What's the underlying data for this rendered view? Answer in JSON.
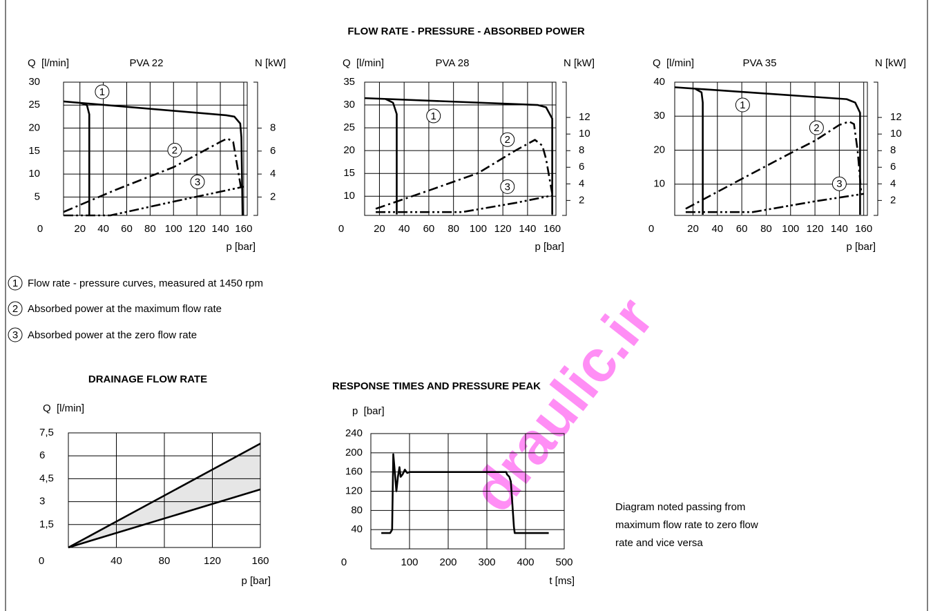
{
  "header": {
    "title": "FLOW RATE - PRESSURE - ABSORBED POWER"
  },
  "legend": [
    {
      "label": "1",
      "text": "Flow rate - pressure curves, measured at 1450 rpm"
    },
    {
      "label": "2",
      "text": "Absorbed power at the maximum flow rate"
    },
    {
      "label": "3",
      "text": "Absorbed power at the zero flow rate"
    }
  ],
  "note": [
    "Diagram noted passing from",
    "maximum flow rate to zero flow",
    "rate and vice versa"
  ],
  "watermark": "draulic.ir",
  "chart_data": [
    {
      "type": "line",
      "title": "PVA 22",
      "ylabel": "Q  [l/min]",
      "y2label": "N [kW]",
      "xlabel": "p [bar]",
      "origin_label": "0",
      "xlim": [
        6,
        163
      ],
      "xticks": [
        20,
        40,
        60,
        80,
        100,
        120,
        140,
        160
      ],
      "ylim": [
        1,
        30
      ],
      "yticks": [
        5,
        10,
        15,
        20,
        25,
        30
      ],
      "y2lim": [
        0.4,
        12
      ],
      "y2ticks": [
        2,
        4,
        6,
        8
      ],
      "grid": true,
      "color": "#000000",
      "series": [
        {
          "x": [
            6,
            145,
            152,
            157,
            158,
            159
          ],
          "values": [
            25.8,
            22.8,
            22.5,
            21,
            18,
            1
          ],
          "dash": "solid"
        },
        {
          "x": [
            20,
            26,
            28,
            28
          ],
          "values": [
            25.5,
            25,
            23,
            1
          ],
          "dash": "solid"
        },
        {
          "x": [
            6,
            50,
            100,
            140,
            146,
            151,
            153,
            158
          ],
          "values": [
            0.7,
            2.6,
            4.6,
            6.8,
            7.1,
            6.8,
            5.6,
            2.6
          ],
          "dash": "dashdot",
          "axis": "y2"
        },
        {
          "x": [
            6,
            46,
            100,
            160
          ],
          "values": [
            0.4,
            0.4,
            1.6,
            2.9
          ],
          "dash": "dashdotdot",
          "axis": "y2"
        }
      ],
      "annotations": [
        {
          "text": "1",
          "x": 39,
          "y": 27.9
        },
        {
          "text": "2",
          "x": 101,
          "y": 15.2
        },
        {
          "text": "3",
          "x": 120.5,
          "y": 8.3
        }
      ]
    },
    {
      "type": "line",
      "title": "PVA 28",
      "ylabel": "Q  [l/min]",
      "y2label": "N [kW]",
      "xlabel": "p [bar]",
      "origin_label": "0",
      "xlim": [
        8,
        163
      ],
      "xticks": [
        20,
        40,
        60,
        80,
        100,
        120,
        140,
        160
      ],
      "ylim": [
        5.8,
        35
      ],
      "yticks": [
        10,
        15,
        20,
        25,
        30,
        35
      ],
      "y2lim": [
        0.2,
        16.25
      ],
      "y2ticks": [
        2,
        4,
        6,
        8,
        10,
        12
      ],
      "grid": true,
      "color": "#000000",
      "series": [
        {
          "x": [
            8,
            148,
            155,
            160,
            160
          ],
          "values": [
            31.5,
            30,
            29.5,
            27,
            6
          ],
          "dash": "solid"
        },
        {
          "x": [
            25,
            31,
            34,
            34
          ],
          "values": [
            31.3,
            30.5,
            28,
            6
          ],
          "dash": "solid"
        },
        {
          "x": [
            17,
            60,
            100,
            130,
            146,
            152,
            155,
            160
          ],
          "values": [
            1.0,
            3.2,
            5.3,
            8.0,
            9.3,
            8.6,
            7,
            2.8
          ],
          "dash": "dashdot",
          "axis": "y2"
        },
        {
          "x": [
            17,
            87,
            130,
            160
          ],
          "values": [
            0.6,
            0.6,
            1.7,
            2.6
          ],
          "dash": "dashdotdot",
          "axis": "y2"
        }
      ],
      "annotations": [
        {
          "text": "1",
          "x": 63.8,
          "y": 27.6
        },
        {
          "text": "2",
          "x": 123.7,
          "y": 22.4
        },
        {
          "text": "3",
          "x": 123.7,
          "y": 12.1
        }
      ]
    },
    {
      "type": "line",
      "title": "PVA 35",
      "ylabel": "Q  [l/min]",
      "y2label": "N [kW]",
      "xlabel": "p [bar]",
      "origin_label": "0",
      "xlim": [
        5,
        163
      ],
      "xticks": [
        20,
        40,
        60,
        80,
        100,
        120,
        140,
        160
      ],
      "ylim": [
        0.8,
        40
      ],
      "yticks": [
        10,
        20,
        30,
        40
      ],
      "y2lim": [
        0.2,
        16.25
      ],
      "y2ticks": [
        2,
        4,
        6,
        8,
        10,
        12
      ],
      "grid": true,
      "color": "#000000",
      "series": [
        {
          "x": [
            5,
            146,
            153,
            157,
            157
          ],
          "values": [
            38.5,
            35,
            34,
            31,
            1
          ],
          "dash": "solid"
        },
        {
          "x": [
            22,
            27,
            28,
            28
          ],
          "values": [
            38,
            37,
            34,
            1
          ],
          "dash": "solid"
        },
        {
          "x": [
            14,
            60,
            100,
            120,
            140,
            148,
            152,
            155,
            158
          ],
          "values": [
            1,
            4.6,
            7.7,
            9.2,
            11.1,
            11.5,
            11.2,
            8,
            2.8
          ],
          "dash": "dashdot",
          "axis": "y2"
        },
        {
          "x": [
            14,
            69,
            120,
            160
          ],
          "values": [
            0.6,
            0.6,
            1.9,
            2.8
          ],
          "dash": "dashdotdot",
          "axis": "y2"
        }
      ],
      "annotations": [
        {
          "text": "1",
          "x": 60.7,
          "y": 33.3
        },
        {
          "text": "2",
          "x": 121.3,
          "y": 26.6
        },
        {
          "text": "3",
          "x": 140,
          "y": 10.1
        }
      ]
    },
    {
      "type": "band",
      "title": "DRAINAGE FLOW RATE",
      "ylabel": "Q  [l/min]",
      "xlabel": "p [bar]",
      "origin_label": "0",
      "xlim": [
        0,
        160
      ],
      "xticks": [
        40,
        80,
        120,
        160
      ],
      "ylim": [
        0,
        7.5
      ],
      "yticks": [
        {
          "value": 1.5,
          "label": "1,5"
        },
        3,
        {
          "value": 4.5,
          "label": "4,5"
        },
        6,
        {
          "value": 7.5,
          "label": "7,5"
        }
      ],
      "grid": true,
      "color": "#000000",
      "fill": "#e6e6e6",
      "series": [
        {
          "x": [
            0,
            160
          ],
          "values": [
            0,
            6.8
          ],
          "dash": "solid"
        },
        {
          "x": [
            0,
            160
          ],
          "values": [
            0,
            3.8
          ],
          "dash": "solid"
        }
      ]
    },
    {
      "type": "line",
      "title": "RESPONSE TIMES AND PRESSURE PEAK",
      "ylabel": "p  [bar]",
      "xlabel": "t [ms]",
      "origin_label": "0",
      "xlim": [
        0,
        500
      ],
      "xticks": [
        100,
        200,
        300,
        400,
        500
      ],
      "ylim": [
        0,
        240
      ],
      "yticks": [
        40,
        80,
        120,
        160,
        200,
        240
      ],
      "grid": true,
      "color": "#000000",
      "series": [
        {
          "x": [
            27,
            50,
            55,
            58,
            62,
            66,
            70,
            74,
            77,
            82,
            88,
            94,
            100,
            350,
            352,
            358,
            362,
            370,
            372,
            460
          ],
          "values": [
            33,
            33,
            40,
            197,
            160,
            120,
            150,
            170,
            150,
            155,
            165,
            158,
            160,
            160,
            155,
            150,
            140,
            45,
            33,
            33
          ],
          "dash": "solid"
        }
      ]
    }
  ]
}
